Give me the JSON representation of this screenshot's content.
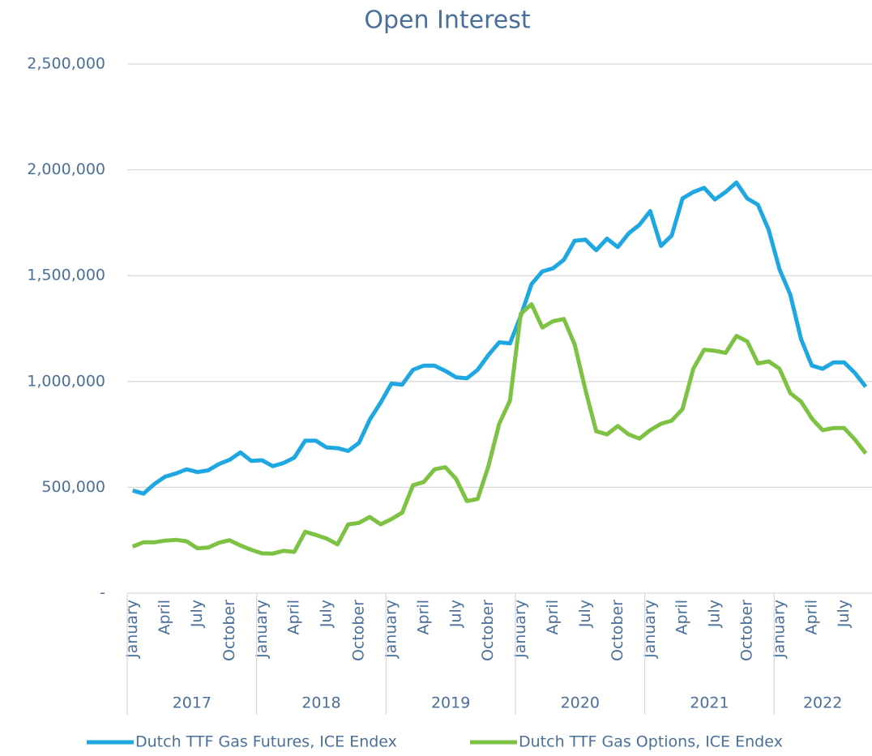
{
  "chart_data": {
    "type": "line",
    "title": "Open Interest",
    "categories": [
      "January",
      null,
      null,
      "April",
      null,
      null,
      "July",
      null,
      null,
      "October",
      null,
      null,
      "January",
      null,
      null,
      "April",
      null,
      null,
      "July",
      null,
      null,
      "October",
      null,
      null,
      "January",
      null,
      null,
      "April",
      null,
      null,
      "July",
      null,
      null,
      "October",
      null,
      null,
      "January",
      null,
      null,
      "April",
      null,
      null,
      "July",
      null,
      null,
      "October",
      null,
      null,
      "January",
      null,
      null,
      "April",
      null,
      null,
      "July",
      null,
      null,
      "October",
      null,
      null,
      "January",
      null,
      null,
      "April",
      null,
      null,
      "July",
      null,
      null
    ],
    "x_groups": [
      "2017",
      "2018",
      "2019",
      "2020",
      "2021",
      "2022"
    ],
    "series": [
      {
        "name": "Dutch TTF Gas Futures, ICE Endex",
        "color": "#1fa7e1",
        "values": [
          485000,
          470000,
          515000,
          550000,
          565000,
          585000,
          572000,
          580000,
          610000,
          630000,
          665000,
          625000,
          628000,
          600000,
          615000,
          640000,
          720000,
          720000,
          688000,
          685000,
          672000,
          710000,
          820000,
          900000,
          990000,
          985000,
          1055000,
          1075000,
          1075000,
          1050000,
          1020000,
          1015000,
          1055000,
          1125000,
          1185000,
          1180000,
          1310000,
          1460000,
          1520000,
          1535000,
          1575000,
          1665000,
          1670000,
          1620000,
          1675000,
          1635000,
          1700000,
          1740000,
          1805000,
          1640000,
          1690000,
          1865000,
          1895000,
          1915000,
          1860000,
          1895000,
          1940000,
          1865000,
          1835000,
          1715000,
          1530000,
          1410000,
          1200000,
          1075000,
          1060000,
          1090000,
          1090000,
          1040000,
          975000
        ]
      },
      {
        "name": "Dutch TTF Gas Options, ICE Endex",
        "color": "#7dc242",
        "values": [
          220000,
          240000,
          240000,
          248000,
          252000,
          245000,
          212000,
          215000,
          238000,
          250000,
          225000,
          205000,
          188000,
          187000,
          200000,
          195000,
          290000,
          275000,
          258000,
          230000,
          325000,
          332000,
          360000,
          325000,
          350000,
          380000,
          510000,
          525000,
          585000,
          595000,
          540000,
          435000,
          445000,
          600000,
          800000,
          910000,
          1320000,
          1365000,
          1255000,
          1285000,
          1295000,
          1175000,
          960000,
          765000,
          750000,
          790000,
          750000,
          730000,
          770000,
          800000,
          815000,
          870000,
          1060000,
          1150000,
          1145000,
          1135000,
          1215000,
          1190000,
          1085000,
          1095000,
          1060000,
          945000,
          905000,
          825000,
          770000,
          780000,
          780000,
          725000,
          660000
        ]
      }
    ],
    "ylim": [
      0,
      2500000
    ],
    "yticks": [
      {
        "value": 0,
        "label": "-"
      },
      {
        "value": 500000,
        "label": "500,000"
      },
      {
        "value": 1000000,
        "label": "1,000,000"
      },
      {
        "value": 1500000,
        "label": "1,500,000"
      },
      {
        "value": 2000000,
        "label": "2,000,000"
      },
      {
        "value": 2500000,
        "label": "2,500,000"
      }
    ],
    "grid": true
  }
}
